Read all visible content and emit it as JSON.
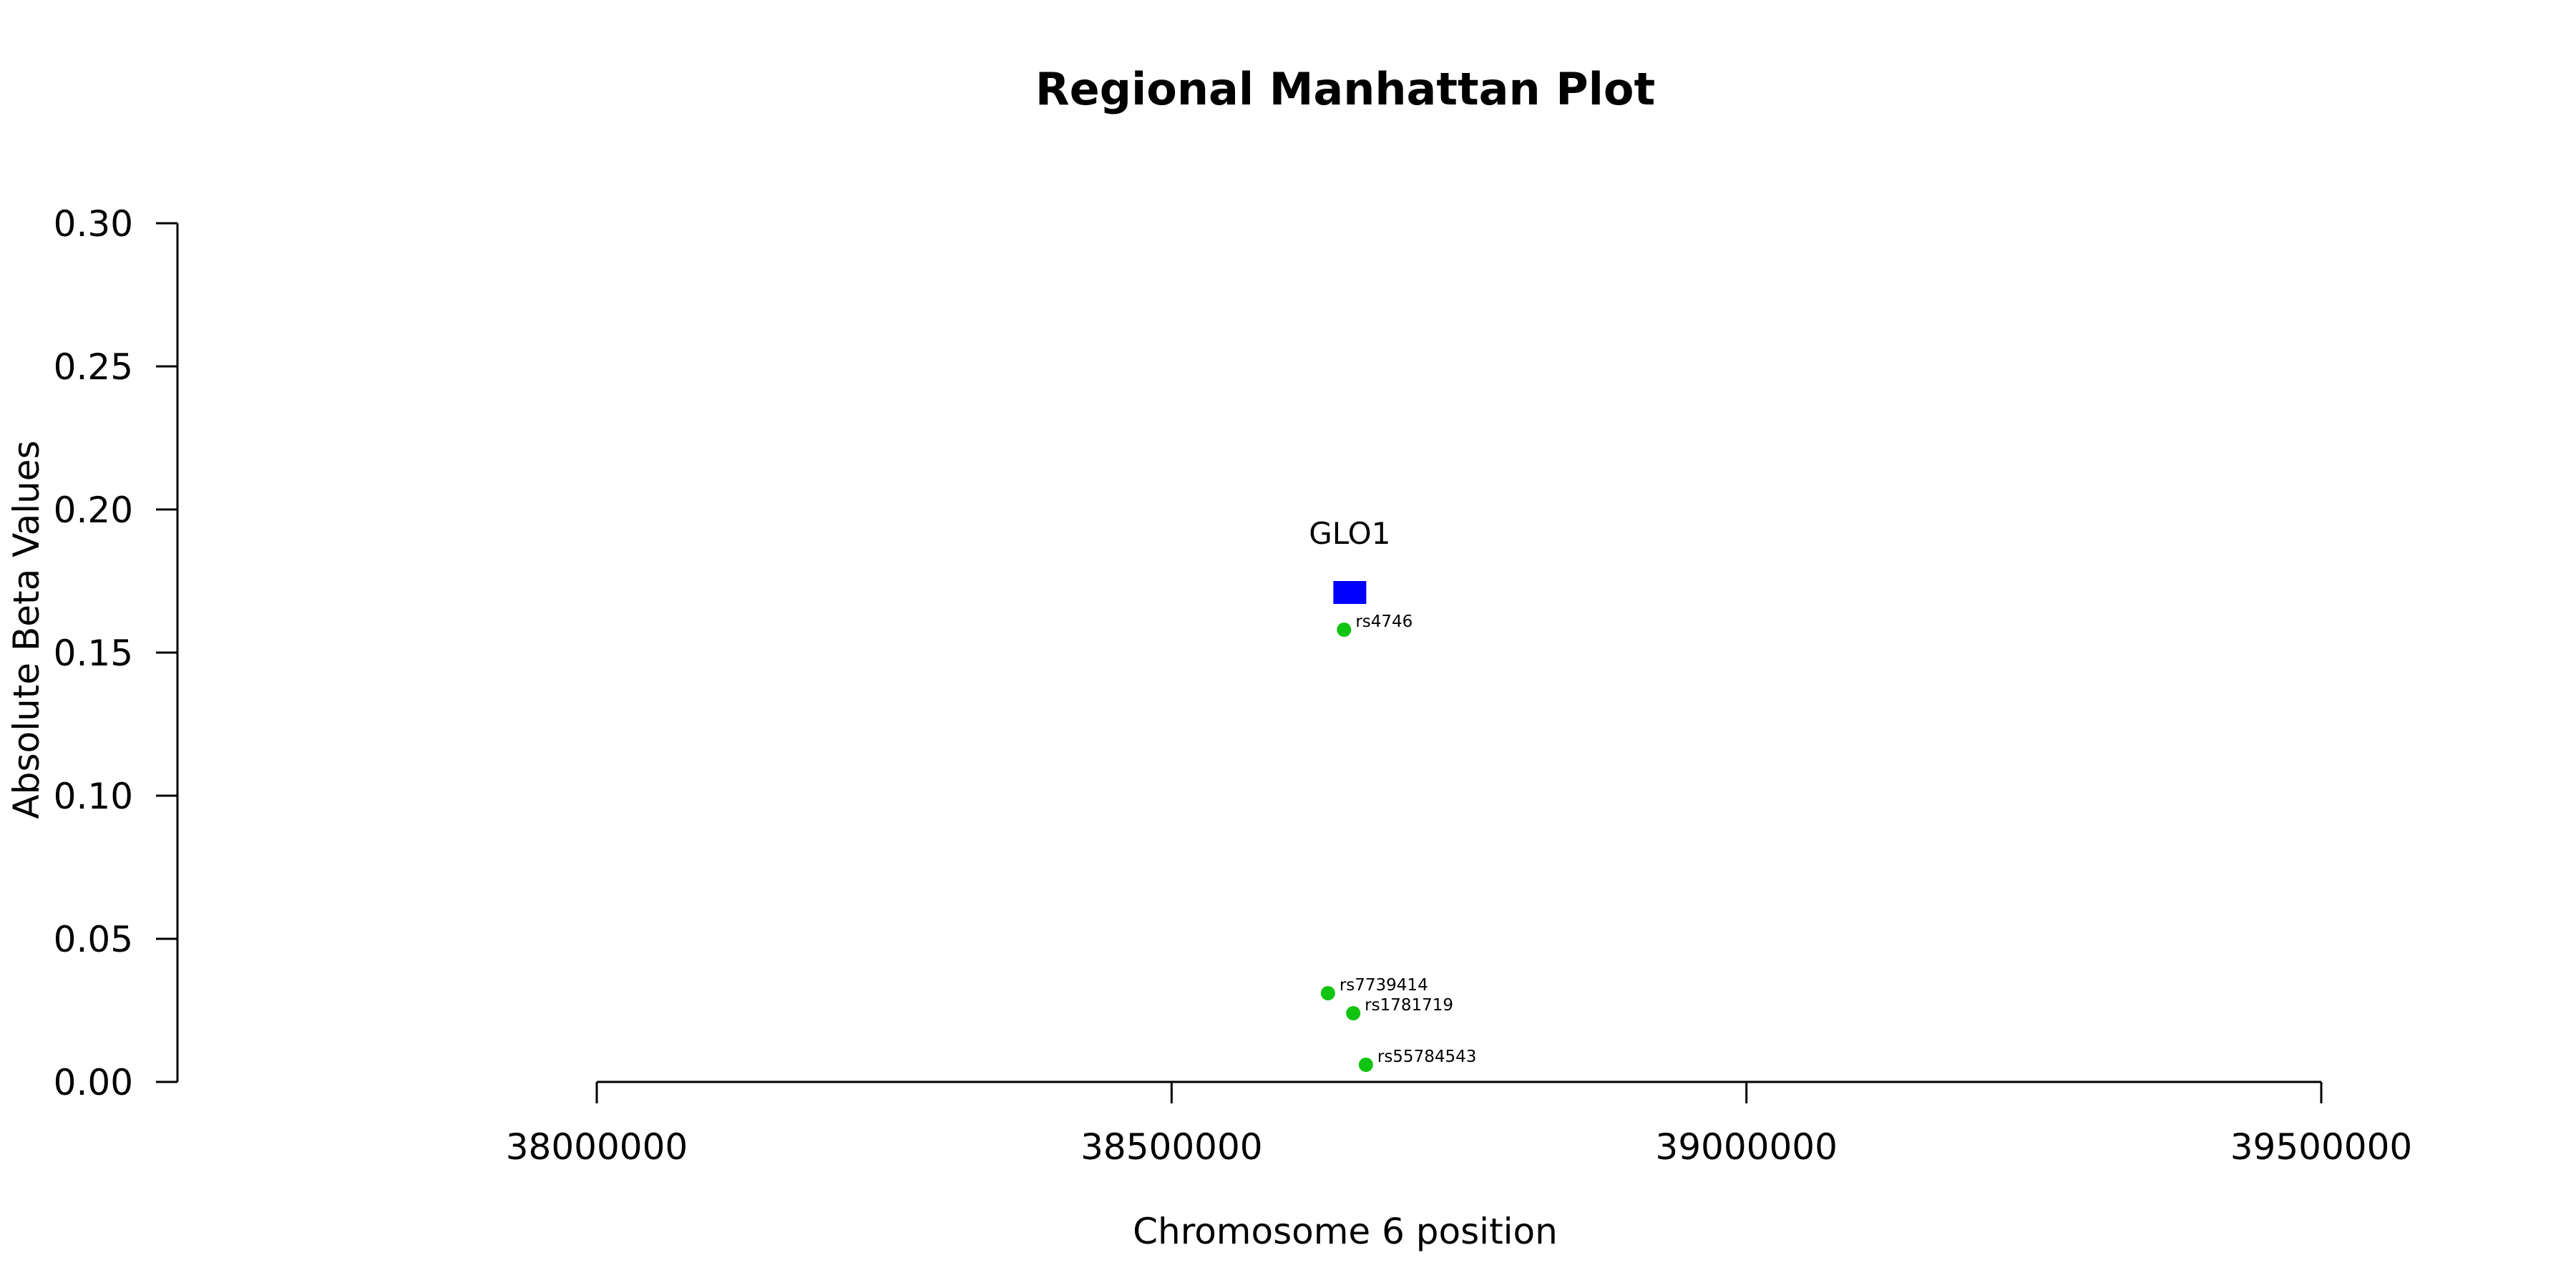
{
  "chart_data": {
    "type": "scatter",
    "title": "Regional Manhattan Plot",
    "xlabel": "Chromosome 6 position",
    "ylabel": "Absolute Beta Values",
    "xlim": [
      38000000,
      39500000
    ],
    "ylim": [
      0,
      0.3
    ],
    "x_ticks": [
      "38000000",
      "38500000",
      "39000000",
      "39500000"
    ],
    "y_ticks": [
      "0.00",
      "0.05",
      "0.10",
      "0.15",
      "0.20",
      "0.25",
      "0.30"
    ],
    "grid": false,
    "colors": {
      "snp": "#11c411",
      "gene": "#0000ff"
    },
    "genes": [
      {
        "name": "GLO1",
        "x": 38655000,
        "y": 0.171
      }
    ],
    "snps": [
      {
        "label": "rs4746",
        "x": 38650000,
        "y": 0.158
      },
      {
        "label": "rs7739414",
        "x": 38636000,
        "y": 0.031
      },
      {
        "label": "rs1781719",
        "x": 38658000,
        "y": 0.024
      },
      {
        "label": "rs55784543",
        "x": 38669000,
        "y": 0.006
      }
    ]
  }
}
